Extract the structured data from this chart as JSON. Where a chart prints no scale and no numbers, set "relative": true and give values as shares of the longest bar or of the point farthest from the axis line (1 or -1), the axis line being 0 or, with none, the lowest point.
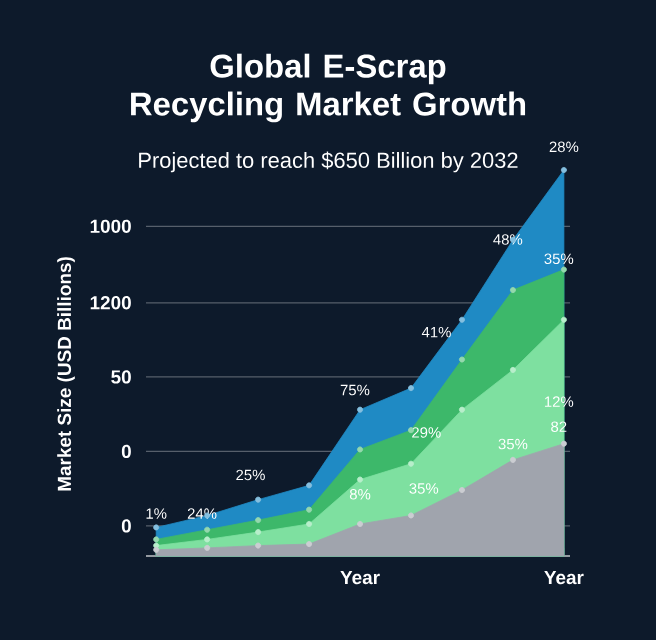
{
  "chart_data": {
    "type": "area",
    "title": "Global E-Scrap Recycling Market Growth",
    "subtitle": "Projected to reach $650 Billion by 2032",
    "ylabel": "Market Size (USD Billions)",
    "categories": [
      null,
      null,
      null,
      null,
      "Year",
      null,
      null,
      null,
      "Year"
    ],
    "relative": true,
    "grid": "y",
    "marker": "circle",
    "annotations": [
      "1%",
      "24%",
      "25%",
      "75%",
      "41%",
      "48%",
      "28%",
      "35%",
      "29%",
      "8%",
      "35%",
      "35%",
      "12%",
      "82",
      "0",
      "0",
      "50",
      "1200",
      "1000"
    ],
    "series": [
      {
        "color": "#1f8ac4",
        "values": [
          0.074,
          0.105,
          0.146,
          0.183,
          0.379,
          0.435,
          0.612,
          0.819,
          1
        ]
      },
      {
        "color": "#3db86a",
        "values": [
          0.043,
          0.068,
          0.093,
          0.12,
          0.276,
          0.326,
          0.509,
          0.689,
          0.742
        ]
      },
      {
        "color": "#7ee0a0",
        "values": [
          0.027,
          0.043,
          0.062,
          0.083,
          0.198,
          0.239,
          0.379,
          0.482,
          0.612
        ]
      },
      {
        "color": "#a0a4ad",
        "values": [
          0.016,
          0.021,
          0.027,
          0.031,
          0.083,
          0.105,
          0.171,
          0.249,
          0.291
        ]
      }
    ]
  }
}
